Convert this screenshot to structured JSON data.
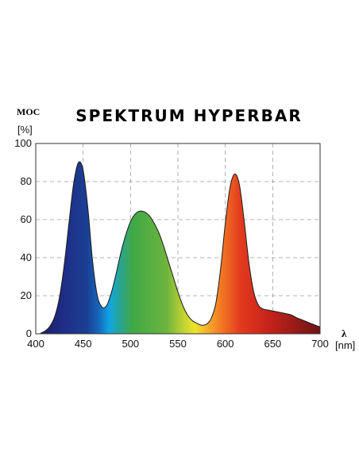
{
  "chart_data": {
    "type": "area",
    "title": "SPEKTRUM HYPERBAR",
    "ylabel": "MOC",
    "yunit": "[%]",
    "xlabel": "λ",
    "xunit": "[nm]",
    "xlim": [
      400,
      700
    ],
    "ylim": [
      0,
      100
    ],
    "xticks": [
      400,
      450,
      500,
      550,
      600,
      650,
      700
    ],
    "yticks": [
      0,
      20,
      40,
      60,
      80,
      100
    ],
    "grid": true,
    "fill": "visible spectrum colors",
    "x": [
      405,
      410,
      415,
      420,
      425,
      430,
      435,
      440,
      445,
      450,
      455,
      460,
      465,
      470,
      475,
      480,
      485,
      490,
      495,
      500,
      505,
      510,
      515,
      520,
      525,
      530,
      535,
      540,
      545,
      550,
      555,
      560,
      565,
      570,
      575,
      580,
      585,
      590,
      595,
      600,
      605,
      610,
      615,
      620,
      625,
      630,
      635,
      640,
      645,
      650,
      655,
      660,
      665,
      670,
      675,
      680,
      685,
      690,
      695,
      700
    ],
    "values": [
      0.3,
      1.5,
      4,
      9,
      19,
      36,
      58,
      79,
      90,
      86,
      66,
      38,
      20,
      14,
      15,
      22,
      32,
      43,
      52,
      59,
      63,
      64.5,
      64,
      62,
      58,
      53,
      46,
      38,
      30,
      22,
      15,
      10,
      7,
      5.5,
      4.5,
      5,
      8,
      16,
      34,
      58,
      77,
      84,
      78,
      59,
      37,
      22,
      15,
      13,
      12.5,
      12,
      11.5,
      11,
      10.5,
      9.8,
      8.5,
      7.5,
      6.5,
      5.5,
      4.5,
      3.6
    ]
  }
}
